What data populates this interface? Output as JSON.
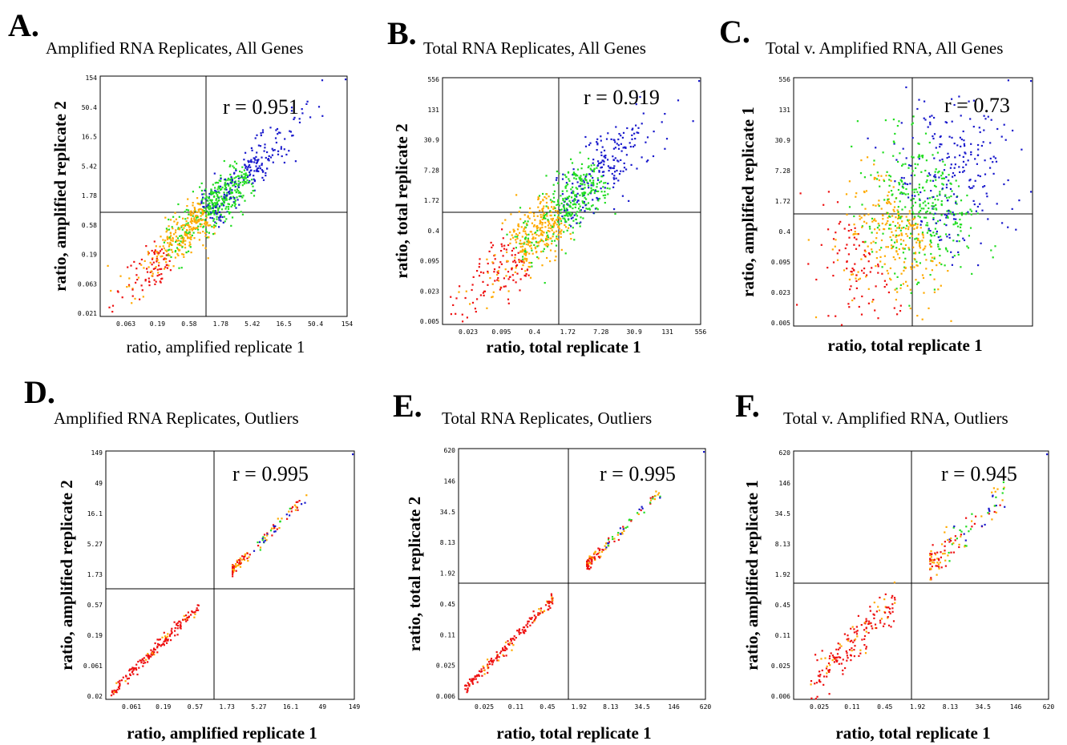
{
  "colors": {
    "red": "#ee1111",
    "orange": "#ffaa00",
    "green": "#22dd22",
    "blue": "#1a1acc"
  },
  "chart_data": [
    {
      "type": "scatter",
      "letter": "A.",
      "title": "Amplified RNA Replicates, All Genes",
      "xlabel": "ratio, amplified replicate 1",
      "ylabel": "ratio, amplified replicate 2",
      "annotation": "r = 0.951",
      "scale": "log",
      "xticks": [
        "0.063",
        "0.19",
        "0.58",
        "1.78",
        "5.42",
        "16.5",
        "50.4",
        "154"
      ],
      "yticks": [
        "154",
        "50.4",
        "16.5",
        "5.42",
        "1.78",
        "0.58",
        "0.19",
        "0.063",
        "0.021"
      ],
      "subset": "all",
      "r": 0.951
    },
    {
      "type": "scatter",
      "letter": "B.",
      "title": "Total RNA Replicates, All Genes",
      "xlabel": "ratio, total replicate 1",
      "ylabel": "ratio, total replicate 2",
      "annotation": "r = 0.919",
      "scale": "log",
      "xticks": [
        "0.023",
        "0.095",
        "0.4",
        "1.72",
        "7.28",
        "30.9",
        "131",
        "556"
      ],
      "yticks": [
        "556",
        "131",
        "30.9",
        "7.28",
        "1.72",
        "0.4",
        "0.095",
        "0.023",
        "0.005"
      ],
      "subset": "all",
      "r": 0.919
    },
    {
      "type": "scatter",
      "letter": "C.",
      "title": "Total v. Amplified RNA, All Genes",
      "xlabel": "ratio, total replicate 1",
      "ylabel": "ratio, amplified replicate 1",
      "annotation": "r = 0.73",
      "scale": "log",
      "xticks": [],
      "yticks": [
        "556",
        "131",
        "30.9",
        "7.28",
        "1.72",
        "0.4",
        "0.095",
        "0.023",
        "0.005"
      ],
      "subset": "all",
      "r": 0.73
    },
    {
      "type": "scatter",
      "letter": "D.",
      "title": "Amplified RNA Replicates, Outliers",
      "xlabel": "ratio, amplified replicate 1",
      "ylabel": "ratio, amplified replicate 2",
      "annotation": "r = 0.995",
      "scale": "log",
      "xticks": [
        "0.061",
        "0.19",
        "0.57",
        "1.73",
        "5.27",
        "16.1",
        "49",
        "149"
      ],
      "yticks": [
        "149",
        "49",
        "16.1",
        "5.27",
        "1.73",
        "0.57",
        "0.19",
        "0.061",
        "0.02"
      ],
      "subset": "outliers",
      "r": 0.995
    },
    {
      "type": "scatter",
      "letter": "E.",
      "title": "Total RNA Replicates, Outliers",
      "xlabel": "ratio, total replicate 1",
      "ylabel": "ratio, total replicate 2",
      "annotation": "r = 0.995",
      "scale": "log",
      "xticks": [
        "0.025",
        "0.11",
        "0.45",
        "1.92",
        "8.13",
        "34.5",
        "146",
        "620"
      ],
      "yticks": [
        "620",
        "146",
        "34.5",
        "8.13",
        "1.92",
        "0.45",
        "0.11",
        "0.025",
        "0.006"
      ],
      "subset": "outliers",
      "r": 0.995
    },
    {
      "type": "scatter",
      "letter": "F.",
      "title": "Total v. Amplified RNA, Outliers",
      "xlabel": "ratio, total replicate 1",
      "ylabel": "ratio, amplified replicate 1",
      "annotation": "r = 0.945",
      "scale": "log",
      "xticks": [
        "0.025",
        "0.11",
        "0.45",
        "1.92",
        "8.13",
        "34.5",
        "146",
        "620"
      ],
      "yticks": [
        "620",
        "146",
        "34.5",
        "8.13",
        "1.92",
        "0.45",
        "0.11",
        "0.025",
        "0.006"
      ],
      "subset": "outliers",
      "r": 0.945
    }
  ]
}
